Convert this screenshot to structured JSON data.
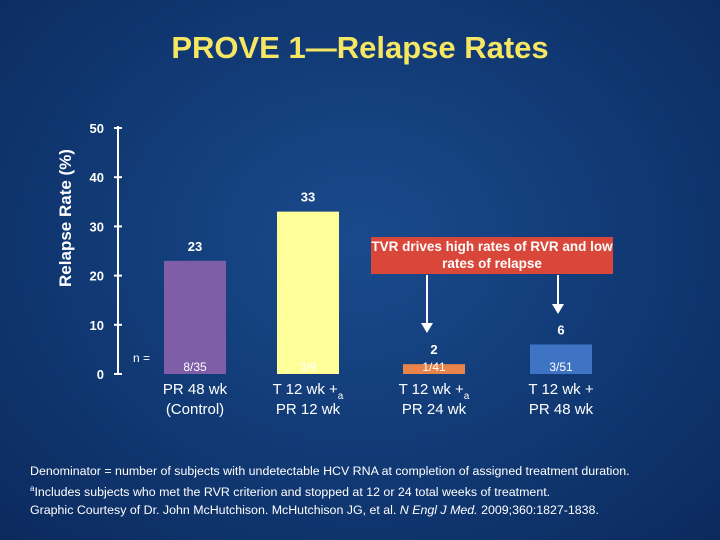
{
  "title": "PROVE 1—Relapse Rates",
  "callout": "TVR drives high rates of RVR and low rates of relapse",
  "n_prefix": "n =",
  "footnotes": {
    "line1": "Denominator = number of subjects with undetectable HCV RNA at completion of assigned treatment duration.",
    "line2_sup": "a",
    "line2": "Includes subjects who met the RVR criterion and stopped at 12 or 24 total weeks of treatment.",
    "line3_plain": "Graphic Courtesy of Dr. John McHutchison.   McHutchison JG, et al. ",
    "line3_journal": "N Engl J Med.",
    "line3_end": " 2009;360:1827-1838."
  },
  "chart_data": {
    "type": "bar",
    "title": "PROVE 1—Relapse Rates",
    "ylabel": "Relapse Rate (%)",
    "ylim": [
      0,
      50
    ],
    "yticks": [
      0,
      10,
      20,
      30,
      40,
      50
    ],
    "grid": false,
    "categories": [
      {
        "line1": "PR 48 wk",
        "line2": "(Control)",
        "sup": ""
      },
      {
        "line1": "T 12 wk +",
        "line2": "PR 12 wk",
        "sup": "a"
      },
      {
        "line1": "T 12 wk +",
        "line2": "PR 24 wk",
        "sup": "a"
      },
      {
        "line1": "T 12 wk +",
        "line2": "PR 48 wk",
        "sup": ""
      }
    ],
    "values": [
      23,
      33,
      2,
      6
    ],
    "value_labels": [
      "23",
      "33",
      "2",
      "6"
    ],
    "n_labels": [
      "8/35",
      "3/9",
      "1/41",
      "3/51"
    ],
    "colors": [
      "#7f5ea8",
      "#ffff99",
      "#e8844a",
      "#3f74c4"
    ]
  }
}
